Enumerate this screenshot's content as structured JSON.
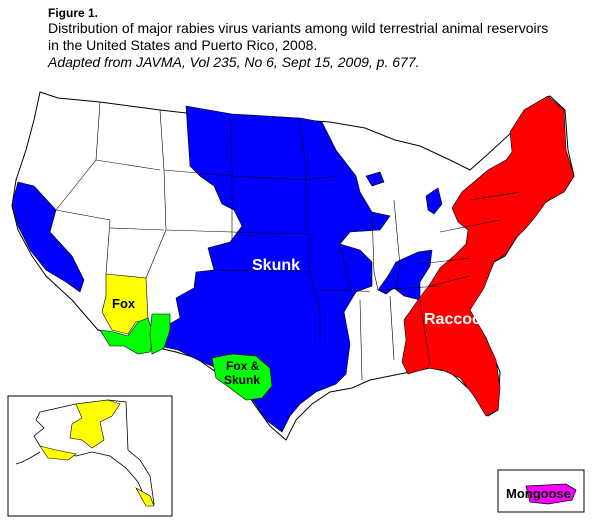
{
  "caption": {
    "figure_label": "Figure 1.",
    "description_line1": "Distribution of major rabies virus variants among wild terrestrial animal reservoirs",
    "description_line2": "in the United States and Puerto Rico, 2008.",
    "source": "Adapted from JAVMA, Vol 235, No 6, Sept 15, 2009, p. 677."
  },
  "regions": {
    "skunk": "Skunk",
    "raccoon": "Raccoon",
    "fox": "Fox",
    "fox_skunk_line1": "Fox &",
    "fox_skunk_line2": "Skunk",
    "mongoose": "Mongoose"
  },
  "colors": {
    "skunk": "#0000ff",
    "raccoon": "#ff0000",
    "fox": "#ffff00",
    "fox_skunk": "#00ff00",
    "mongoose": "#ff00ff",
    "no_variant": "#ffffff",
    "borders": "#000000"
  }
}
